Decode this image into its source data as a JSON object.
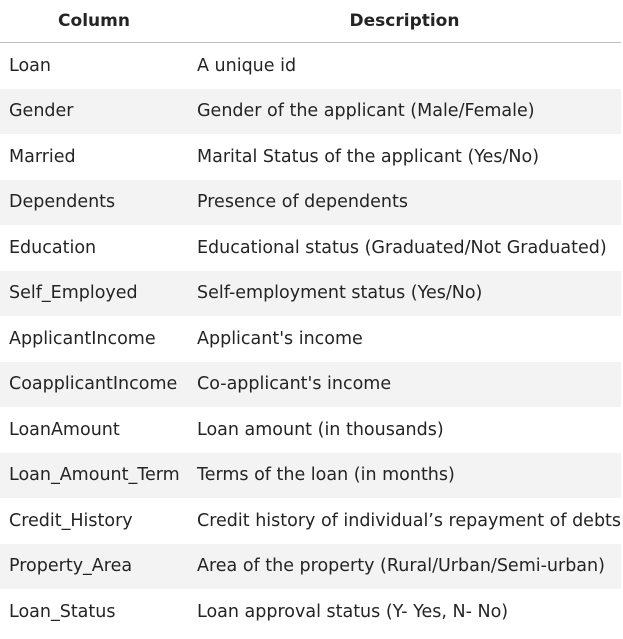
{
  "table": {
    "headers": [
      "Column",
      "Description"
    ],
    "rows": [
      [
        "Loan",
        "A unique id"
      ],
      [
        "Gender",
        "Gender of the applicant (Male/Female)"
      ],
      [
        "Married",
        "Marital Status of the applicant (Yes/No)"
      ],
      [
        "Dependents",
        "Presence of dependents"
      ],
      [
        "Education",
        "Educational status (Graduated/Not Graduated)"
      ],
      [
        "Self_Employed",
        "Self-employment status (Yes/No)"
      ],
      [
        "ApplicantIncome",
        "Applicant's income"
      ],
      [
        "CoapplicantIncome",
        "Co-applicant's income"
      ],
      [
        "LoanAmount",
        "Loan amount (in thousands)"
      ],
      [
        "Loan_Amount_Term",
        "Terms of the loan (in months)"
      ],
      [
        "Credit_History",
        "Credit history of individual’s repayment of debts"
      ],
      [
        "Property_Area",
        "Area of the property (Rural/Urban/Semi-urban)"
      ],
      [
        "Loan_Status",
        "Loan approval status (Y- Yes, N- No)"
      ]
    ]
  }
}
